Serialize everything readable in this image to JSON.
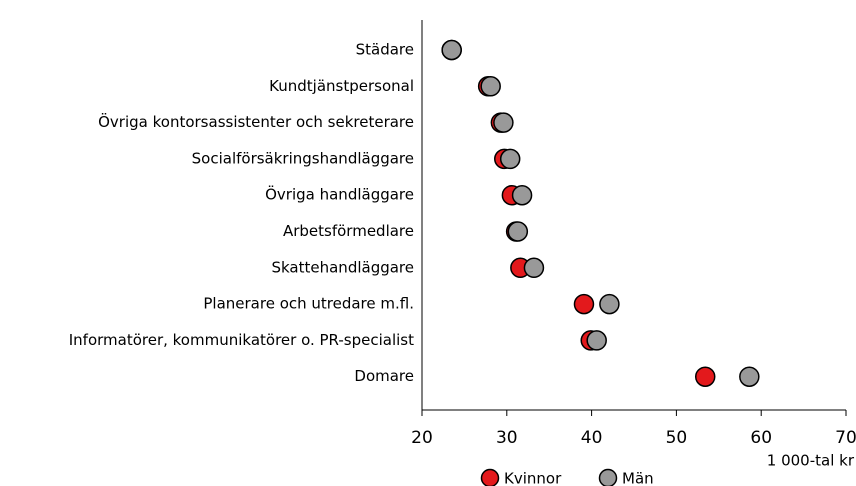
{
  "chart_data": {
    "type": "dot",
    "categories": [
      "Städare",
      "Kundtjänstpersonal",
      "Övriga kontorsassistenter och sekreterare",
      "Socialförsäkringshandläggare",
      "Övriga handläggare",
      "Arbetsförmedlare",
      "Skattehandläggare",
      "Planerare och utredare m.fl.",
      "Informatörer, kommunikatörer o. PR-specialist",
      "Domare"
    ],
    "series": [
      {
        "name": "Kvinnor",
        "color": "#e3191c",
        "values": [
          23.5,
          27.8,
          29.3,
          29.7,
          30.6,
          31.1,
          31.6,
          39.1,
          39.9,
          53.4
        ]
      },
      {
        "name": "Män",
        "color": "#999999",
        "values": [
          23.5,
          28.1,
          29.6,
          30.4,
          31.8,
          31.3,
          33.2,
          42.1,
          40.6,
          58.6
        ]
      }
    ],
    "x_label": "1 000-tal kr",
    "xlim": [
      20,
      70
    ],
    "xticks": [
      20,
      30,
      40,
      50,
      60,
      70
    ],
    "legend": "bottom"
  }
}
